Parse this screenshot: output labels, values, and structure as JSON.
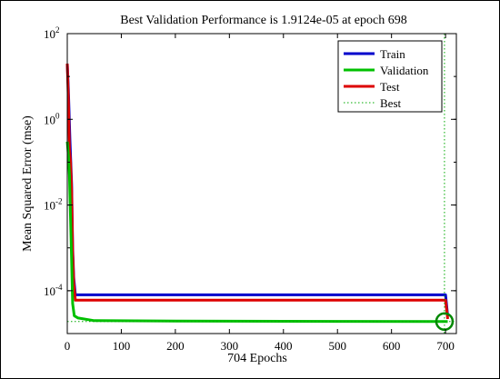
{
  "chart_data": {
    "type": "line",
    "title": "Best Validation Performance is 1.9124e-05 at epoch 698",
    "xlabel": "704 Epochs",
    "ylabel": "Mean Squared Error  (mse)",
    "xlim": [
      0,
      720
    ],
    "ylim": [
      1e-05,
      100
    ],
    "yscale": "log",
    "grid": false,
    "legend_position": "top-right",
    "x_ticks": [
      0,
      100,
      200,
      300,
      400,
      500,
      600,
      700
    ],
    "y_ticks": [
      {
        "value": 100,
        "mantissa": "10",
        "exponent": "2"
      },
      {
        "value": 1,
        "mantissa": "10",
        "exponent": "0"
      },
      {
        "value": 0.01,
        "mantissa": "10",
        "exponent": "-2"
      },
      {
        "value": 0.0001,
        "mantissa": "10",
        "exponent": "-4"
      }
    ],
    "series": [
      {
        "name": "Train",
        "color": "#0000cc",
        "style": "solid",
        "points": [
          [
            0,
            20
          ],
          [
            2,
            5
          ],
          [
            5,
            0.3
          ],
          [
            8,
            0.03
          ],
          [
            10,
            0.001
          ],
          [
            12,
            0.0002
          ],
          [
            15,
            8e-05
          ],
          [
            700,
            8e-05
          ],
          [
            704,
            2.5e-05
          ]
        ]
      },
      {
        "name": "Validation",
        "color": "#00c000",
        "style": "solid",
        "points": [
          [
            0,
            0.3
          ],
          [
            2,
            0.15
          ],
          [
            4,
            0.05
          ],
          [
            6,
            0.005
          ],
          [
            8,
            0.0005
          ],
          [
            10,
            5e-05
          ],
          [
            13,
            2.6e-05
          ],
          [
            20,
            2.3e-05
          ],
          [
            50,
            2e-05
          ],
          [
            200,
            1.95e-05
          ],
          [
            500,
            1.92e-05
          ],
          [
            698,
            1.91e-05
          ],
          [
            704,
            1.91e-05
          ]
        ]
      },
      {
        "name": "Test",
        "color": "#dd0000",
        "style": "solid",
        "points": [
          [
            0,
            20
          ],
          [
            2,
            3
          ],
          [
            4,
            0.2
          ],
          [
            6,
            0.1
          ],
          [
            8,
            0.02
          ],
          [
            10,
            0.0008
          ],
          [
            12,
            0.00015
          ],
          [
            15,
            6e-05
          ],
          [
            700,
            6e-05
          ],
          [
            704,
            2.2e-05
          ]
        ]
      },
      {
        "name": "Best",
        "color": "#00aa00",
        "style": "dotted",
        "best_epoch": 698,
        "best_value": 1.9124e-05
      }
    ]
  }
}
